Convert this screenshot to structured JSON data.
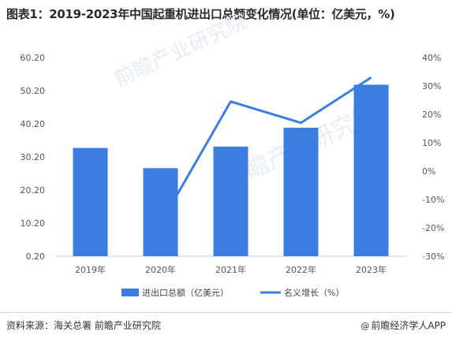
{
  "title": "图表1：2019-2023年中国起重机进出口总额变化情况(单位：亿美元，%)",
  "source": "资料来源：海关总署 前瞻产业研究院",
  "brand": "前瞻经济学人APP",
  "watermark": "前瞻产业研究院",
  "chart_data": {
    "type": "bar",
    "categories": [
      "2019年",
      "2020年",
      "2021年",
      "2022年",
      "2023年"
    ],
    "left_axis": {
      "min": 0.2,
      "max": 60.2,
      "ticks": [
        "0.20",
        "10.20",
        "20.20",
        "30.20",
        "40.20",
        "50.20",
        "60.20"
      ]
    },
    "right_axis": {
      "min": -30,
      "max": 40,
      "ticks": [
        "-30%",
        "-20%",
        "-10%",
        "0%",
        "10%",
        "20%",
        "30%",
        "40%"
      ]
    },
    "series": [
      {
        "name": "进出口总额（亿美元）",
        "type": "bar",
        "axis": "left",
        "color": "#3b7de0",
        "values": [
          32.9,
          26.8,
          33.3,
          39.0,
          52.0
        ]
      },
      {
        "name": "名义增长（%）",
        "type": "line",
        "axis": "right",
        "color": "#3b7de0",
        "values": [
          null,
          -18.5,
          24.5,
          17.0,
          33.0
        ]
      }
    ],
    "grid": false,
    "legend_position": "bottom"
  }
}
